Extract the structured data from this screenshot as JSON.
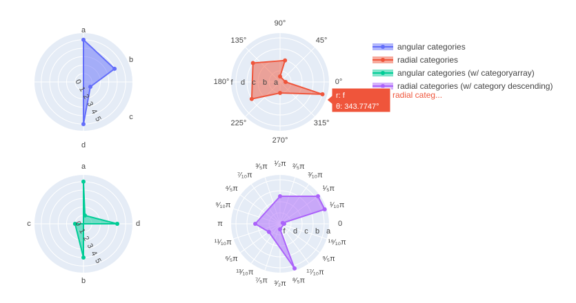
{
  "legend": [
    {
      "label": "angular categories",
      "color": "#636efa"
    },
    {
      "label": "radial categories",
      "color": "#ef553b"
    },
    {
      "label": "angular categories (w/ categoryarray)",
      "color": "#00cc96"
    },
    {
      "label": "radial categories (w/ category descending)",
      "color": "#ab63fa"
    }
  ],
  "hover": {
    "line1": "r: f",
    "line2": "θ: 343.7747°",
    "name": "radial categ..."
  },
  "chart_data": [
    {
      "type": "polar",
      "series": [
        {
          "name": "angular categories",
          "color": "#636efa",
          "points": [
            {
              "theta": "a",
              "r": 5
            },
            {
              "theta": "b",
              "r": 4
            },
            {
              "theta": "c",
              "r": 1
            },
            {
              "theta": "d",
              "r": 5
            },
            {
              "theta": "a",
              "r": 5
            }
          ]
        }
      ],
      "angular_categories": [
        "a",
        "b",
        "c",
        "d"
      ],
      "angular_tick_labels": [
        "a",
        "b",
        "c",
        "d"
      ],
      "radial_tick_labels": [
        "0",
        "1",
        "2",
        "3",
        "4",
        "5"
      ],
      "radial_range": [
        0,
        5.8
      ],
      "sector_deg": [
        -90,
        270
      ],
      "fill": "toself"
    },
    {
      "type": "polar",
      "series": [
        {
          "name": "radial categories",
          "color": "#ef553b",
          "points": [
            {
              "theta": 0,
              "r": "a"
            },
            {
              "theta": -16.2,
              "r": "f"
            },
            {
              "theta": 270,
              "r": "b"
            },
            {
              "theta": 211,
              "r": "d"
            },
            {
              "theta": 145,
              "r": "d"
            },
            {
              "theta": 77,
              "r": "c"
            },
            {
              "theta": 90,
              "r": "a"
            },
            {
              "theta": 0,
              "r": "a"
            }
          ]
        }
      ],
      "radial_categories": [
        "a",
        "b",
        "c",
        "d",
        "f"
      ],
      "radial_tick_labels": [
        "a",
        "b",
        "c",
        "d",
        "f"
      ],
      "angular_tick_labels": [
        "0°",
        "45°",
        "90°",
        "135°",
        "180°",
        "225°",
        "270°",
        "315°"
      ],
      "fill": "toself"
    },
    {
      "type": "polar",
      "series": [
        {
          "name": "angular categories (w/ categoryarray)",
          "color": "#00cc96",
          "points": [
            {
              "theta": "a",
              "r": 5
            },
            {
              "theta": "a+",
              "r": 1
            },
            {
              "theta": "d",
              "r": 4
            },
            {
              "theta": "c",
              "r": 1
            },
            {
              "theta": "b",
              "r": 4
            },
            {
              "theta": "a",
              "r": 5
            }
          ]
        }
      ],
      "angular_categories": [
        "d",
        "a",
        "c",
        "b"
      ],
      "angular_tick_labels": [
        "d",
        "a",
        "c",
        "b"
      ],
      "radial_tick_labels": [
        "0",
        "1",
        "2",
        "3",
        "4",
        "5"
      ],
      "radial_range": [
        0,
        5.8
      ],
      "fill": "toself"
    },
    {
      "type": "polar",
      "series": [
        {
          "name": "radial categories (w/ category descending)",
          "color": "#ab63fa",
          "points": [
            {
              "theta": "π/2",
              "r": "c"
            },
            {
              "theta": "π/5",
              "r": "a"
            },
            {
              "theta": "π/10",
              "r": "a"
            },
            {
              "theta": "π/10",
              "r": "d"
            },
            {
              "theta": "0",
              "r": "d"
            },
            {
              "theta": "3π/2",
              "r": "f"
            },
            {
              "theta": "8π/5",
              "r": "a"
            },
            {
              "theta": "6π/5",
              "r": "d"
            },
            {
              "theta": "π",
              "r": "c"
            },
            {
              "theta": "π/2",
              "r": "c"
            }
          ]
        }
      ],
      "radial_categories_order": [
        "f",
        "d",
        "c",
        "b",
        "a"
      ],
      "radial_tick_labels": [
        "f",
        "d",
        "c",
        "b",
        "a"
      ],
      "angular_tick_labels": [
        "0",
        "¹⁄₁₀π",
        "¹⁄₅π",
        "³⁄₁₀π",
        "²⁄₅π",
        "¹⁄₂π",
        "³⁄₅π",
        "⁷⁄₁₀π",
        "⁴⁄₅π",
        "⁹⁄₁₀π",
        "π",
        "¹¹⁄₁₀π",
        "⁶⁄₅π",
        "¹³⁄₁₀π",
        "⁷⁄₅π",
        "³⁄₂π",
        "⁸⁄₅π",
        "¹⁷⁄₁₀π",
        "⁹⁄₅π",
        "¹⁹⁄₁₀π"
      ],
      "fill": "toself"
    }
  ]
}
